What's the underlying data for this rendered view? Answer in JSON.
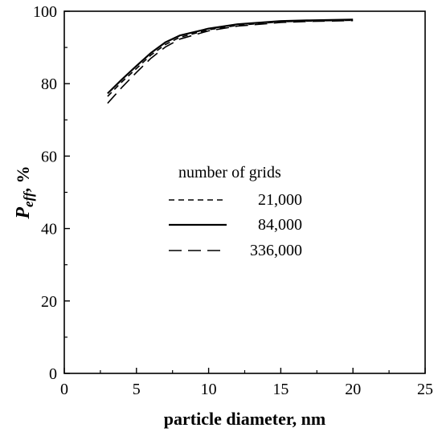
{
  "chart_data": {
    "type": "line",
    "title": "",
    "xlabel": "particle diameter, nm",
    "ylabel_main": "P",
    "ylabel_sub": "eff",
    "ylabel_suffix": ", %",
    "xlim": [
      0,
      25
    ],
    "ylim": [
      0,
      100
    ],
    "xticks": [
      0,
      5,
      10,
      15,
      20,
      25
    ],
    "yticks": [
      0,
      20,
      40,
      60,
      80,
      100
    ],
    "grid": false,
    "legend": {
      "title": "number of grids",
      "placement": "center"
    },
    "series": [
      {
        "name": "21,000",
        "style": "short-dash",
        "x": [
          3,
          4,
          5,
          6,
          7,
          8,
          10,
          12,
          15,
          17,
          20
        ],
        "y": [
          76.5,
          80.5,
          84.2,
          87.9,
          90.8,
          92.8,
          94.9,
          96.1,
          97.1,
          97.3,
          97.5
        ]
      },
      {
        "name": "84,000",
        "style": "solid",
        "x": [
          3,
          4,
          5,
          6,
          7,
          8,
          10,
          12,
          15,
          17,
          20
        ],
        "y": [
          77.3,
          81.2,
          84.9,
          88.5,
          91.4,
          93.3,
          95.2,
          96.4,
          97.3,
          97.5,
          97.7
        ]
      },
      {
        "name": "336,000",
        "style": "long-dash",
        "x": [
          3,
          4,
          5,
          6,
          7,
          8,
          10,
          12,
          15,
          17,
          20
        ],
        "y": [
          74.6,
          79.0,
          83.1,
          87.0,
          90.1,
          92.3,
          94.6,
          95.9,
          96.9,
          97.2,
          97.4
        ]
      }
    ]
  }
}
